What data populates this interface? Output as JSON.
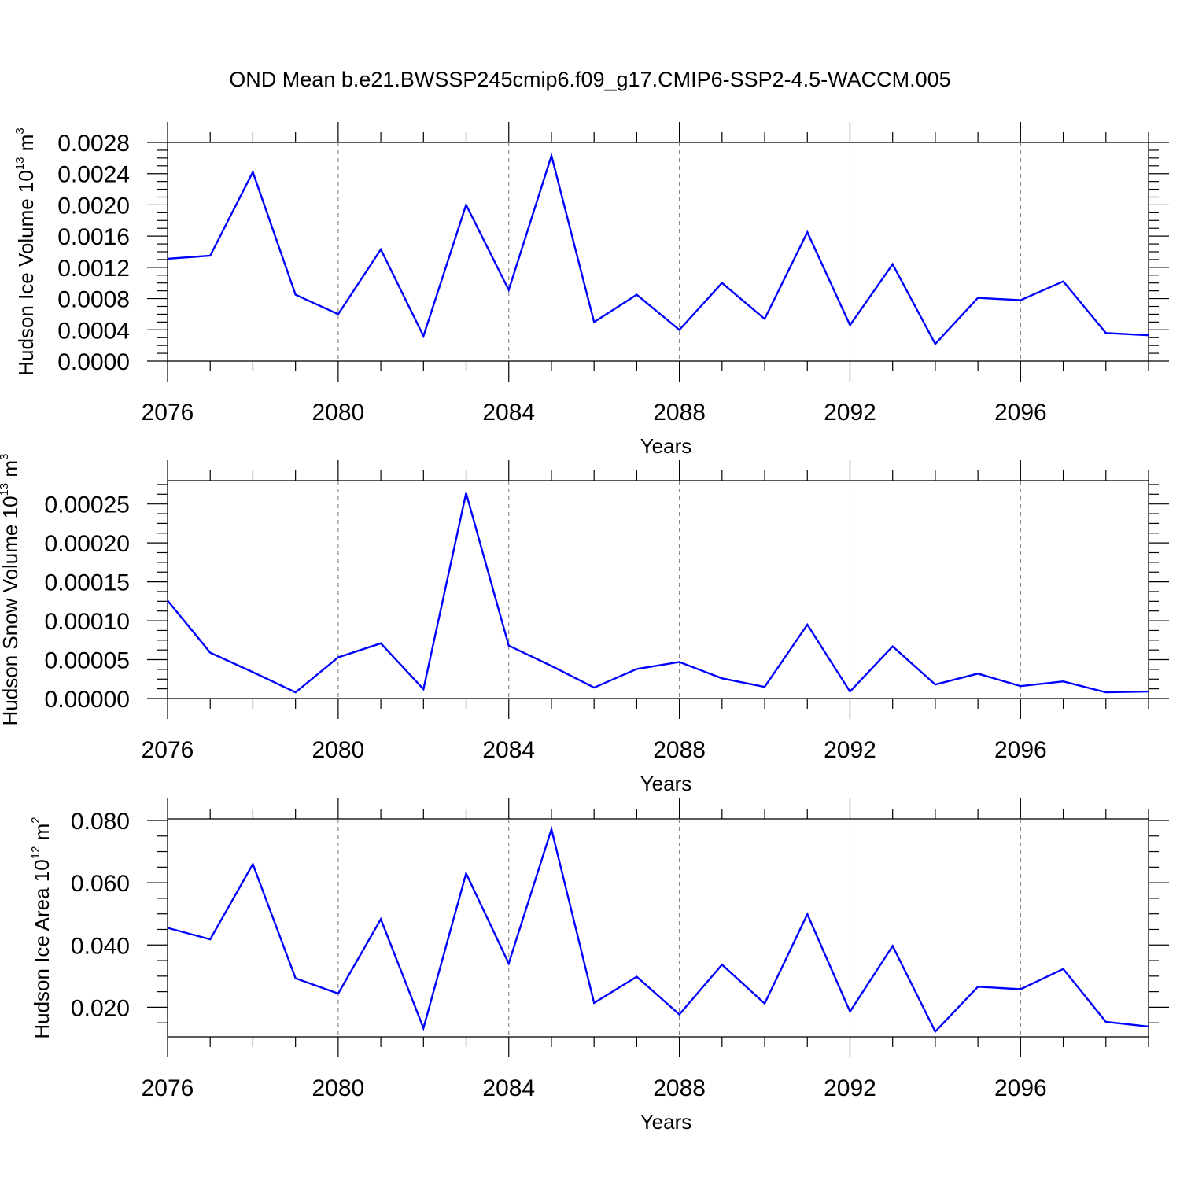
{
  "figure": {
    "title": "OND Mean b.e21.BWSSP245cmip6.f09_g17.CMIP6-SSP2-4.5-WACCM.005"
  },
  "chart_data": [
    {
      "type": "line",
      "xlabel": "Years",
      "ylabel": "Hudson Ice Volume 10",
      "ylabel_exponent": "13",
      "ylabel_unit": "m",
      "ylabel_unit_exponent": "3",
      "xlim": [
        2076,
        2099
      ],
      "ylim": [
        0.0,
        0.0028
      ],
      "x_ticks": [
        "2076",
        "2080",
        "2084",
        "2088",
        "2092",
        "2096"
      ],
      "y_ticks": [
        "0.0000",
        "0.0004",
        "0.0008",
        "0.0012",
        "0.0016",
        "0.0020",
        "0.0024",
        "0.0028"
      ],
      "grid": "dashed vertical at major x ticks",
      "color": "#0000ff",
      "x": [
        2076,
        2077,
        2078,
        2079,
        2080,
        2081,
        2082,
        2083,
        2084,
        2085,
        2086,
        2087,
        2088,
        2089,
        2090,
        2091,
        2092,
        2093,
        2094,
        2095,
        2096,
        2097,
        2098,
        2099
      ],
      "values": [
        0.00131,
        0.00135,
        0.00242,
        0.00085,
        0.0006,
        0.00143,
        0.00032,
        0.002,
        0.00091,
        0.00263,
        0.0005,
        0.00085,
        0.0004,
        0.001,
        0.00054,
        0.00165,
        0.00046,
        0.00124,
        0.00022,
        0.00081,
        0.00078,
        0.00102,
        0.00036,
        0.00033
      ]
    },
    {
      "type": "line",
      "xlabel": "Years",
      "ylabel": "Hudson Snow Volume 10",
      "ylabel_exponent": "13",
      "ylabel_unit": "m",
      "ylabel_unit_exponent": "3",
      "xlim": [
        2076,
        2099
      ],
      "ylim": [
        0.0,
        0.00028
      ],
      "x_ticks": [
        "2076",
        "2080",
        "2084",
        "2088",
        "2092",
        "2096"
      ],
      "y_ticks": [
        "0.00000",
        "0.00005",
        "0.00010",
        "0.00015",
        "0.00020",
        "0.00025"
      ],
      "grid": "dashed vertical at major x ticks",
      "color": "#0000ff",
      "x": [
        2076,
        2077,
        2078,
        2079,
        2080,
        2081,
        2082,
        2083,
        2084,
        2085,
        2086,
        2087,
        2088,
        2089,
        2090,
        2091,
        2092,
        2093,
        2094,
        2095,
        2096,
        2097,
        2098,
        2099
      ],
      "values": [
        0.000126,
        5.9e-05,
        3.4e-05,
        8e-06,
        5.3e-05,
        7.1e-05,
        1.2e-05,
        0.000264,
        6.8e-05,
        4.2e-05,
        1.4e-05,
        3.8e-05,
        4.7e-05,
        2.6e-05,
        1.5e-05,
        9.5e-05,
        9e-06,
        6.7e-05,
        1.8e-05,
        3.2e-05,
        1.6e-05,
        2.2e-05,
        8e-06,
        9e-06
      ]
    },
    {
      "type": "line",
      "xlabel": "Years",
      "ylabel": "Hudson Ice Area 10",
      "ylabel_exponent": "12",
      "ylabel_unit": "m",
      "ylabel_unit_exponent": "2",
      "xlim": [
        2076,
        2099
      ],
      "ylim": [
        0.0105,
        0.0805
      ],
      "x_ticks": [
        "2076",
        "2080",
        "2084",
        "2088",
        "2092",
        "2096"
      ],
      "y_ticks": [
        "0.020",
        "0.040",
        "0.060",
        "0.080"
      ],
      "grid": "dashed vertical at major x ticks",
      "color": "#0000ff",
      "x": [
        2076,
        2077,
        2078,
        2079,
        2080,
        2081,
        2082,
        2083,
        2084,
        2085,
        2086,
        2087,
        2088,
        2089,
        2090,
        2091,
        2092,
        2093,
        2094,
        2095,
        2096,
        2097,
        2098,
        2099
      ],
      "values": [
        0.0455,
        0.0418,
        0.066,
        0.0293,
        0.0244,
        0.0483,
        0.0133,
        0.063,
        0.0341,
        0.0772,
        0.0214,
        0.0298,
        0.0177,
        0.0337,
        0.0212,
        0.0499,
        0.0186,
        0.0397,
        0.0122,
        0.0266,
        0.0258,
        0.0323,
        0.0153,
        0.0138
      ]
    }
  ]
}
